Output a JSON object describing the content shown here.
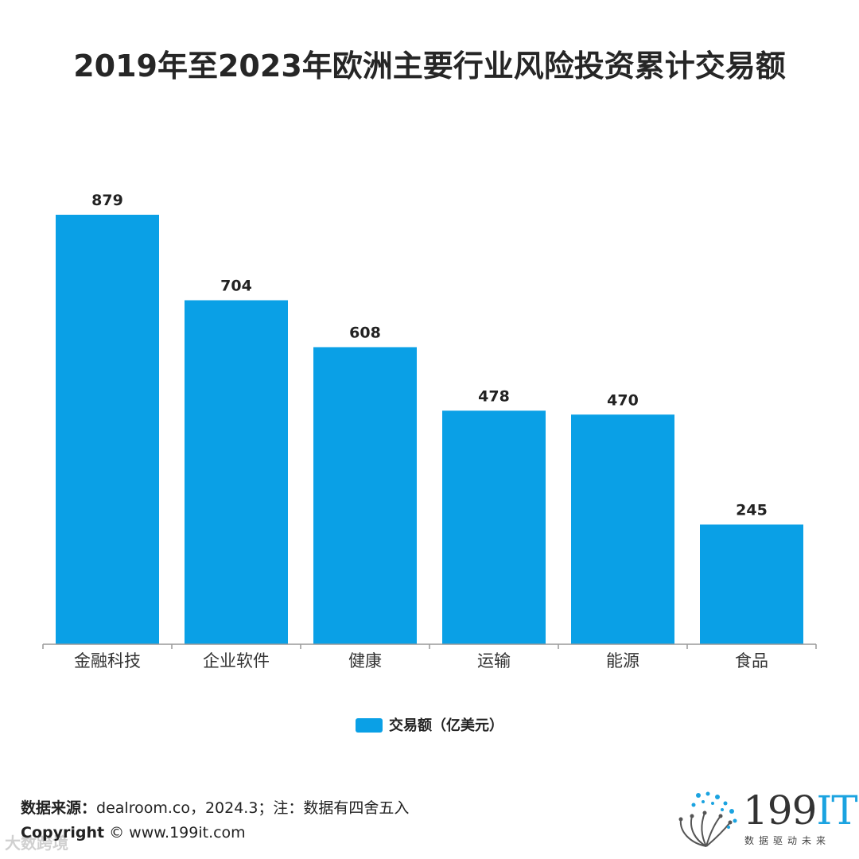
{
  "chart_data": {
    "type": "bar",
    "title": "2019年至2023年欧洲主要行业风险投资累计交易额",
    "categories": [
      "金融科技",
      "企业软件",
      "健康",
      "运输",
      "能源",
      "食品"
    ],
    "series": [
      {
        "name": "交易额（亿美元）",
        "values": [
          879,
          704,
          608,
          478,
          470,
          245
        ],
        "color": "#0aa0e6"
      }
    ],
    "value_labels": [
      "879",
      "704",
      "608",
      "478",
      "470",
      "245"
    ],
    "xlabel": "",
    "ylabel": "",
    "ylim": [
      0,
      879
    ],
    "grid": false,
    "legend": "bottom-center"
  },
  "source": {
    "label": "数据来源：",
    "text": "dealroom.co，2024.3；注：数据有四舍五入"
  },
  "copyright": {
    "label": "Copyright",
    "text": "© www.199it.com"
  },
  "watermark": "大数跨境",
  "logo": {
    "main": "199",
    "accent": "IT",
    "sub": "数据驱动未来"
  },
  "colors": {
    "bar": "#0aa0e6",
    "axis": "#999999",
    "text": "#262626"
  }
}
